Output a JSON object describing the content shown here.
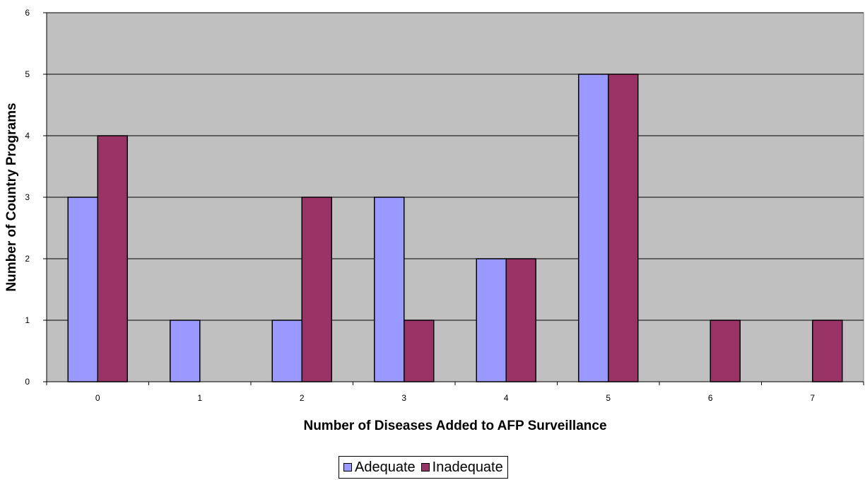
{
  "chart_data": {
    "type": "bar",
    "xlabel": "Number of Diseases Added to AFP Surveillance",
    "ylabel": "Number of Country Programs",
    "categories": [
      "0",
      "1",
      "2",
      "3",
      "4",
      "5",
      "6",
      "7"
    ],
    "series": [
      {
        "name": "Adequate",
        "color": "#9999ff",
        "values": [
          3,
          1,
          1,
          3,
          2,
          5,
          0,
          0
        ]
      },
      {
        "name": "Inadequate",
        "color": "#993366",
        "values": [
          4,
          0,
          3,
          1,
          2,
          5,
          1,
          1
        ]
      }
    ],
    "ylim": [
      0,
      6
    ],
    "yticks": [
      "0",
      "1",
      "2",
      "3",
      "4",
      "5",
      "6"
    ],
    "grid": true,
    "plot_background": "#c0c0c0",
    "legend_position": "bottom"
  }
}
